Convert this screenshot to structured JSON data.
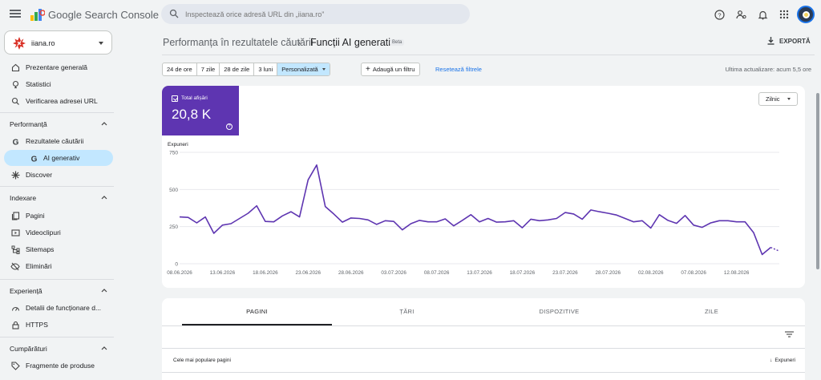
{
  "app": {
    "brand": "Google Search Console",
    "search_placeholder": "Inspectează orice adresă URL din „iiana.ro”"
  },
  "property": {
    "name": "iiana.ro"
  },
  "sidebar": {
    "top_items": [
      {
        "label": "Prezentare generală",
        "icon": "home-icon"
      },
      {
        "label": "Statistici",
        "icon": "insights-icon"
      },
      {
        "label": "Verificarea adresei URL",
        "icon": "search-icon"
      }
    ],
    "sections": [
      {
        "title": "Performanță",
        "items": [
          {
            "label": "Rezultatele căutării",
            "icon": "google-g-icon"
          },
          {
            "label": "AI generativ",
            "icon": "google-g-icon",
            "active": true
          },
          {
            "label": "Discover",
            "icon": "discover-icon"
          }
        ]
      },
      {
        "title": "Indexare",
        "items": [
          {
            "label": "Pagini",
            "icon": "pages-icon"
          },
          {
            "label": "Videoclipuri",
            "icon": "video-icon"
          },
          {
            "label": "Sitemaps",
            "icon": "sitemap-icon"
          },
          {
            "label": "Eliminări",
            "icon": "removals-icon"
          }
        ]
      },
      {
        "title": "Experiență",
        "items": [
          {
            "label": "Detalii de funcționare d...",
            "icon": "gauge-icon"
          },
          {
            "label": "HTTPS",
            "icon": "lock-icon"
          }
        ]
      },
      {
        "title": "Cumpărături",
        "items": [
          {
            "label": "Fragmente de produse",
            "icon": "tag-icon"
          }
        ]
      }
    ]
  },
  "header": {
    "crumb_parent": "Performanța în rezultatele căutării",
    "crumb_current": "Funcții AI generativ",
    "badge": "Beta",
    "export_label": "EXPORTĂ"
  },
  "filters": {
    "ranges": [
      "24 de ore",
      "7 zile",
      "28 de zile",
      "3 luni",
      "Personalizată"
    ],
    "selected": "Personalizată",
    "add_filter": "Adaugă un filtru",
    "reset": "Resetează filtrele",
    "last_update": "Ultima actualizare: acum 5,5 ore"
  },
  "metric": {
    "label": "Total afișări",
    "value": "20,8 K",
    "color": "#5e35b1"
  },
  "granularity": "Zilnic",
  "chart_data": {
    "type": "line",
    "ylabel": "Expuneri",
    "ylim": [
      0,
      750
    ],
    "yticks": [
      "750",
      "500",
      "250",
      "0"
    ],
    "ytick_values": [
      750,
      500,
      250,
      0
    ],
    "color": "#5e35b1",
    "x_tick_labels": [
      "08.06.2026",
      "13.06.2026",
      "18.06.2026",
      "23.06.2026",
      "28.06.2026",
      "03.07.2026",
      "08.07.2026",
      "13.07.2026",
      "18.07.2026",
      "23.07.2026",
      "28.07.2026",
      "02.08.2026",
      "07.08.2026",
      "12.08.2026"
    ],
    "start_date": "2026-06-08",
    "values": [
      315,
      312,
      275,
      315,
      205,
      260,
      270,
      305,
      340,
      390,
      285,
      282,
      322,
      350,
      315,
      565,
      665,
      385,
      335,
      280,
      308,
      305,
      295,
      265,
      290,
      285,
      228,
      270,
      292,
      282,
      282,
      302,
      255,
      292,
      330,
      282,
      305,
      280,
      282,
      290,
      242,
      300,
      290,
      295,
      305,
      345,
      335,
      300,
      362,
      350,
      340,
      328,
      305,
      282,
      290,
      240,
      330,
      292,
      272,
      325,
      260,
      245,
      275,
      290,
      290,
      282,
      282,
      210,
      62,
      110,
      85
    ],
    "dashed_tail_from": 69
  },
  "table": {
    "tabs": [
      "PAGINI",
      "ȚĂRI",
      "DISPOZITIVE",
      "ZILE"
    ],
    "active_tab": "PAGINI",
    "col_left": "Cele mai populare pagini",
    "col_right": "Expuneri"
  }
}
